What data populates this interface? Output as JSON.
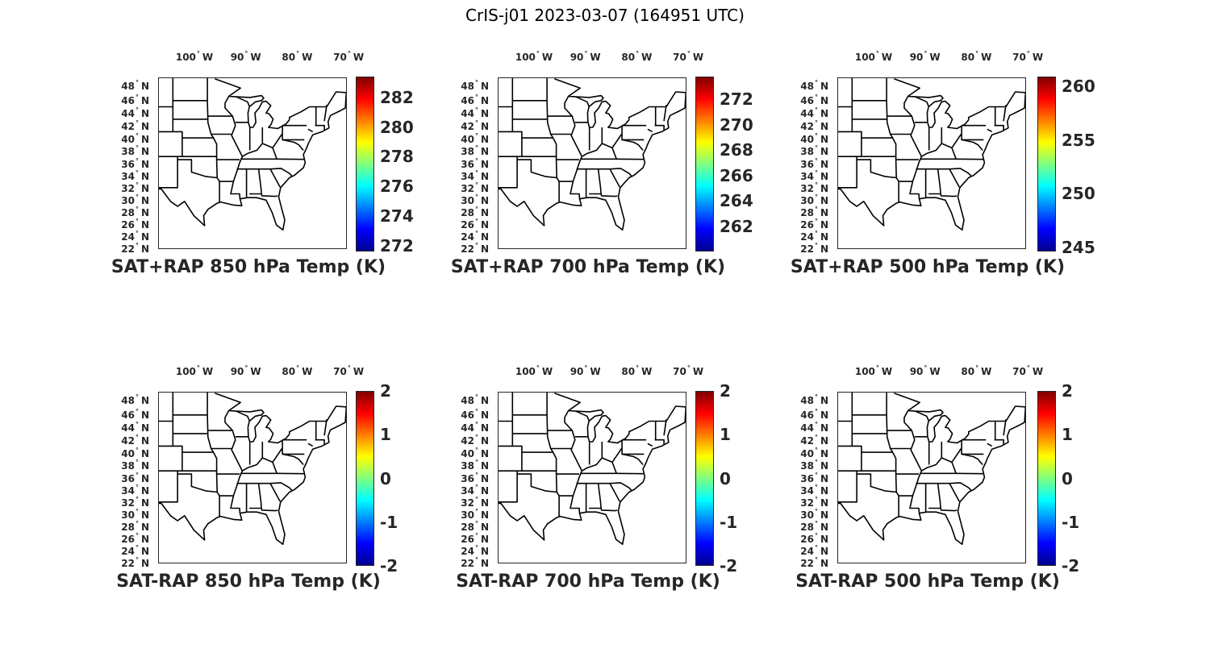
{
  "title": "CrIS-j01 2023-03-07 (164951 UTC)",
  "lat_ticks": [
    48,
    46,
    44,
    42,
    40,
    38,
    36,
    34,
    32,
    30,
    28,
    26,
    24,
    22
  ],
  "lat_suffix": "N",
  "lon_ticks": [
    100,
    90,
    80,
    70
  ],
  "lon_suffix": "W",
  "degree_symbol": "°",
  "panels": [
    {
      "title": "SAT+RAP 850 hPa Temp (K)",
      "clim": [
        271.6,
        283.4
      ],
      "cbar_ticks": [
        "272",
        "274",
        "276",
        "278",
        "280",
        "282"
      ]
    },
    {
      "title": "SAT+RAP 700 hPa Temp (K)",
      "clim": [
        260.0,
        273.8
      ],
      "cbar_ticks": [
        "262",
        "264",
        "266",
        "268",
        "270",
        "272"
      ]
    },
    {
      "title": "SAT+RAP 500 hPa Temp (K)",
      "clim": [
        244.6,
        260.9
      ],
      "cbar_ticks": [
        "245",
        "250",
        "255",
        "260"
      ]
    },
    {
      "title": "SAT-RAP 850 hPa Temp (K)",
      "clim": [
        -2,
        2
      ],
      "cbar_ticks": [
        "-2",
        "-1",
        "0",
        "1",
        "2"
      ]
    },
    {
      "title": "SAT-RAP 700 hPa Temp (K)",
      "clim": [
        -2,
        2
      ],
      "cbar_ticks": [
        "-2",
        "-1",
        "0",
        "1",
        "2"
      ]
    },
    {
      "title": "SAT-RAP 500 hPa Temp (K)",
      "clim": [
        -2,
        2
      ],
      "cbar_ticks": [
        "-2",
        "-1",
        "0",
        "1",
        "2"
      ]
    }
  ],
  "colormap": [
    "#00008f",
    "#0000ff",
    "#00ffff",
    "#ffff00",
    "#ff0000",
    "#800000"
  ]
}
